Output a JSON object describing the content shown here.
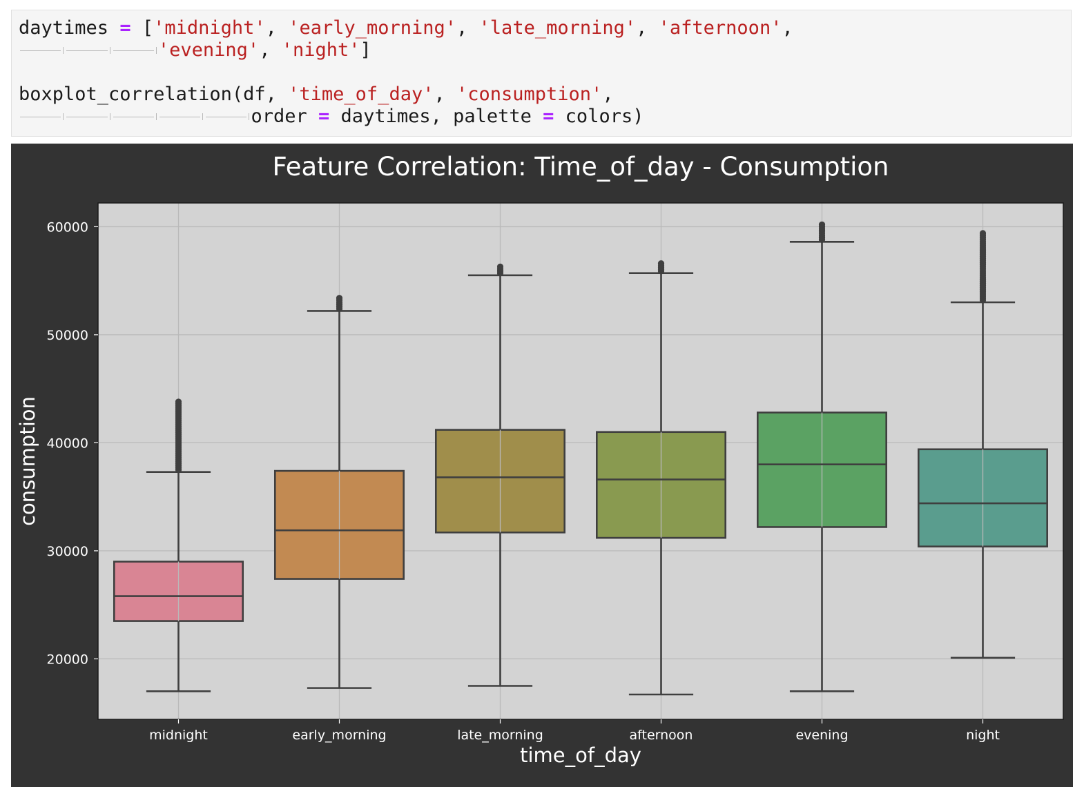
{
  "code": {
    "line1": {
      "name": "daytimes",
      "op": "=",
      "open": "[",
      "s1": "'midnight'",
      "s2": "'early_morning'",
      "s3": "'late_morning'",
      "s4": "'afternoon'",
      "sep": ", ",
      "trail": ","
    },
    "line2": {
      "s5": "'evening'",
      "s6": "'night'",
      "sep": ", ",
      "close": "]"
    },
    "line3": {
      "call": "boxplot_correlation(df, ",
      "s1": "'time_of_day'",
      "sep": ", ",
      "s2": "'consumption'",
      "trail": ","
    },
    "line4": {
      "kw1": "order ",
      "op1": "=",
      "v1": " daytimes, palette ",
      "op2": "=",
      "v2": " colors)"
    }
  },
  "chart_data": {
    "type": "boxplot",
    "title": "Feature Correlation: Time_of_day - Consumption",
    "xlabel": "time_of_day",
    "ylabel": "consumption",
    "categories": [
      "midnight",
      "early_morning",
      "late_morning",
      "afternoon",
      "evening",
      "night"
    ],
    "boxes": [
      {
        "whisker_low": 17000,
        "q1": 23500,
        "median": 25800,
        "q3": 29000,
        "whisker_high": 37300,
        "outlier_max": 43800,
        "color": "#d98594"
      },
      {
        "whisker_low": 17300,
        "q1": 27400,
        "median": 31900,
        "q3": 37400,
        "whisker_high": 52200,
        "outlier_max": 53400,
        "color": "#c28a52"
      },
      {
        "whisker_low": 17500,
        "q1": 31700,
        "median": 36800,
        "q3": 41200,
        "whisker_high": 55500,
        "outlier_max": 56300,
        "color": "#a08e4b"
      },
      {
        "whisker_low": 16700,
        "q1": 31200,
        "median": 36600,
        "q3": 41000,
        "whisker_high": 55700,
        "outlier_max": 56600,
        "color": "#899a50"
      },
      {
        "whisker_low": 17000,
        "q1": 32200,
        "median": 38000,
        "q3": 42800,
        "whisker_high": 58600,
        "outlier_max": 60200,
        "color": "#5ba263"
      },
      {
        "whisker_low": 20100,
        "q1": 30400,
        "median": 34400,
        "q3": 39400,
        "whisker_high": 53000,
        "outlier_max": 59400,
        "color": "#5a9d8e"
      }
    ],
    "yticks": [
      20000,
      30000,
      40000,
      50000,
      60000
    ],
    "ylim": [
      14400,
      62200
    ],
    "grid": true,
    "colors": {
      "figure_bg": "#333333",
      "axes_bg": "#d3d3d3",
      "grid": "#b9b9b9",
      "line": "#3f3f3f",
      "text": "#ffffff"
    }
  }
}
